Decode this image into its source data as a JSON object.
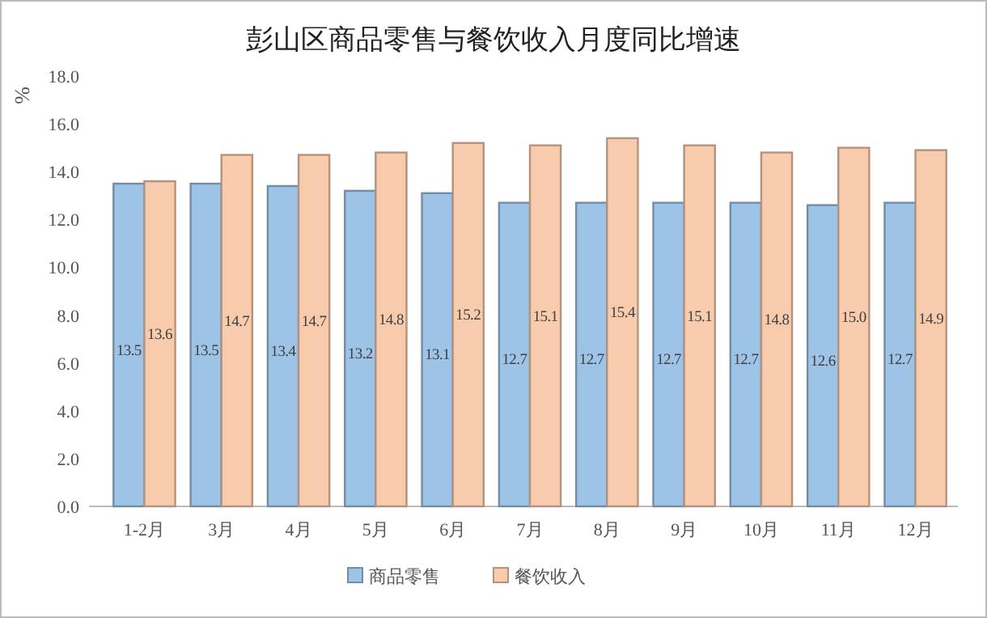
{
  "chart_data": {
    "type": "bar",
    "title": "彭山区商品零售与餐饮收入月度同比增速",
    "ylabel": "%",
    "categories": [
      "1-2月",
      "3月",
      "4月",
      "5月",
      "6月",
      "7月",
      "8月",
      "9月",
      "10月",
      "11月",
      "12月"
    ],
    "series": [
      {
        "name": "商品零售",
        "color": "#9dc3e6",
        "values": [
          13.5,
          13.5,
          13.4,
          13.2,
          13.1,
          12.7,
          12.7,
          12.7,
          12.7,
          12.6,
          12.7
        ],
        "value_labels": [
          "13.5",
          "13.5",
          "13.4",
          "13.2",
          "13.1",
          "12.7",
          "12.7",
          "12.7",
          "12.7",
          "12.6",
          "12.7"
        ]
      },
      {
        "name": "餐饮收入",
        "color": "#f8cbad",
        "values": [
          13.6,
          14.7,
          14.7,
          14.8,
          15.2,
          15.1,
          15.4,
          15.1,
          14.8,
          15.0,
          14.9
        ],
        "value_labels": [
          "13.6",
          "14.7",
          "14.7",
          "14.8",
          "15.2",
          "15.1",
          "15.4",
          "15.1",
          "14.8",
          "15.0",
          "14.9"
        ]
      }
    ],
    "ylim": [
      0,
      18
    ],
    "yticks": [
      {
        "value": 0,
        "label": "0.0"
      },
      {
        "value": 2,
        "label": "2.0"
      },
      {
        "value": 4,
        "label": "4.0"
      },
      {
        "value": 6,
        "label": "6.0"
      },
      {
        "value": 8,
        "label": "8.0"
      },
      {
        "value": 10,
        "label": "10.0"
      },
      {
        "value": 12,
        "label": "12.0"
      },
      {
        "value": 14,
        "label": "14.0"
      },
      {
        "value": 16,
        "label": "16.0"
      },
      {
        "value": 18,
        "label": "18.0"
      }
    ],
    "legend": "bottom"
  }
}
